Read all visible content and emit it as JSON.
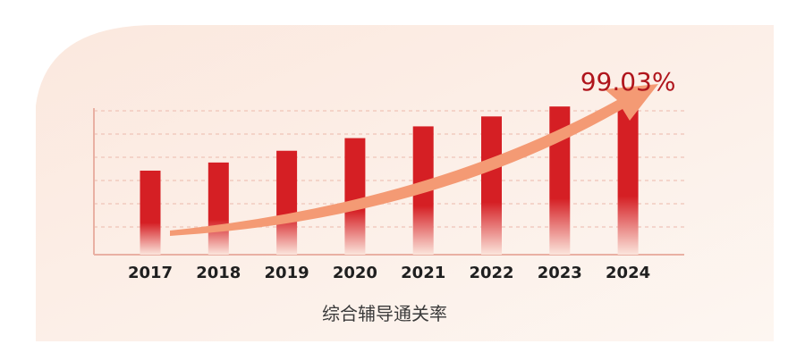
{
  "chart_data": {
    "type": "bar",
    "categories": [
      "2017",
      "2018",
      "2019",
      "2020",
      "2021",
      "2022",
      "2023",
      "2024"
    ],
    "values": [
      91.3,
      92.2,
      93.5,
      94.9,
      96.2,
      97.3,
      98.4,
      99.03
    ],
    "ylim": [
      82,
      100
    ],
    "grid": true,
    "annotations": [
      {
        "category": "2024",
        "text": "99.03%"
      }
    ],
    "caption": "综合辅导通关率",
    "trend_arrow": true,
    "colors": {
      "bar_top": "#d51f24",
      "bar_bottom": "#fbe5dc",
      "arrow": "#f49a74",
      "panel": "#fdf1ea",
      "axis": "#e9b0a3",
      "grid": "#f0c4b8",
      "peak_label": "#b0151c"
    }
  }
}
